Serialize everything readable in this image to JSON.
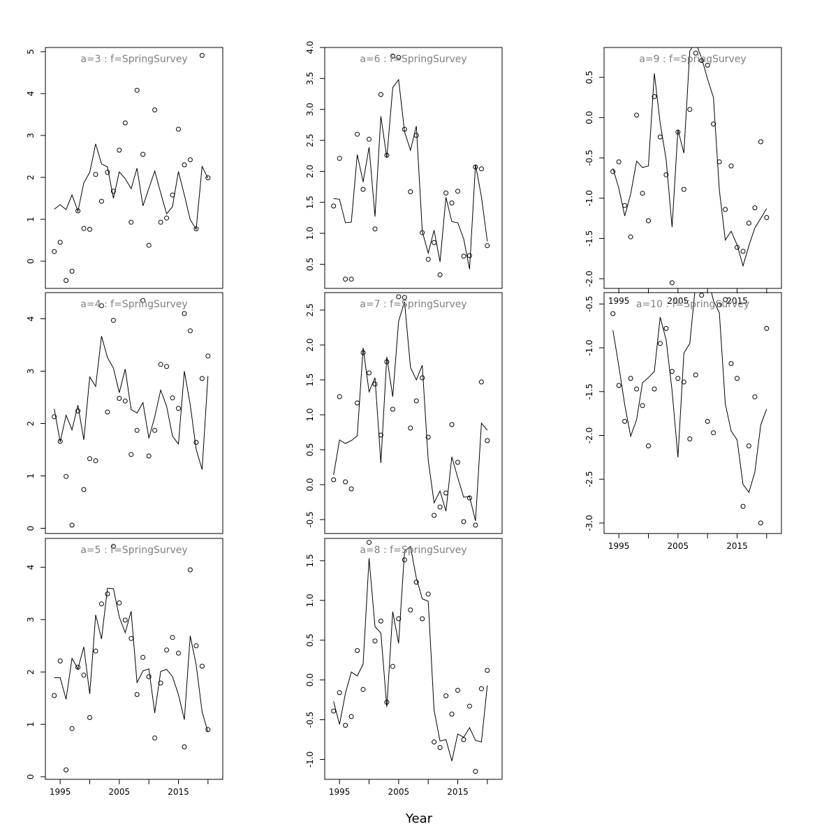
{
  "chart_data": {
    "type": "scatter",
    "xlabel": "Year",
    "x": [
      1994,
      1995,
      1996,
      1997,
      1998,
      1999,
      2000,
      2001,
      2002,
      2003,
      2004,
      2005,
      2006,
      2007,
      2008,
      2009,
      2010,
      2011,
      2012,
      2013,
      2014,
      2015,
      2016,
      2017,
      2018,
      2019,
      2020
    ],
    "xlim": [
      1992.5,
      2022.5
    ],
    "xticks": [
      1995,
      2005,
      2015
    ],
    "panels": [
      {
        "title": "a=3  :  f=SpringSurvey",
        "ylim": [
          -0.65,
          5.1
        ],
        "yticks": [
          0,
          1,
          2,
          3,
          4,
          5
        ],
        "obs": [
          0.23,
          0.45,
          -0.46,
          -0.24,
          1.2,
          0.78,
          0.76,
          2.07,
          1.43,
          2.12,
          1.67,
          2.65,
          3.3,
          0.93,
          4.08,
          2.55,
          0.38,
          3.61,
          0.93,
          1.03,
          1.58,
          3.15,
          2.3,
          2.42,
          0.77,
          4.91,
          1.99
        ],
        "fit": [
          1.24,
          1.35,
          1.23,
          1.58,
          1.19,
          1.87,
          2.12,
          2.8,
          2.32,
          2.25,
          1.5,
          2.13,
          1.97,
          1.73,
          2.22,
          1.32,
          1.74,
          2.15,
          1.63,
          1.13,
          1.3,
          2.14,
          1.58,
          0.99,
          0.76,
          2.26,
          1.98
        ]
      },
      {
        "title": "a=4  :  f=SpringSurvey",
        "ylim": [
          -0.1,
          4.5
        ],
        "yticks": [
          0,
          1,
          2,
          3,
          4
        ],
        "obs": [
          2.13,
          1.66,
          0.99,
          0.06,
          2.24,
          0.74,
          1.33,
          1.29,
          4.25,
          2.22,
          3.97,
          2.48,
          2.43,
          1.41,
          1.87,
          4.35,
          1.38,
          1.87,
          3.13,
          3.09,
          2.49,
          2.29,
          4.1,
          3.77,
          1.64,
          2.86,
          3.29
        ],
        "fit": [
          2.28,
          1.65,
          2.16,
          1.88,
          2.35,
          1.69,
          2.89,
          2.71,
          3.67,
          3.26,
          3.06,
          2.59,
          3.04,
          2.27,
          2.2,
          2.4,
          1.72,
          2.13,
          2.64,
          2.33,
          1.76,
          1.61,
          3.0,
          2.36,
          1.51,
          1.12,
          2.91
        ]
      },
      {
        "title": "a=5  :  f=SpringSurvey",
        "ylim": [
          -0.05,
          4.55
        ],
        "yticks": [
          0,
          1,
          2,
          3,
          4
        ],
        "obs": [
          1.55,
          2.21,
          0.13,
          0.92,
          2.09,
          1.94,
          1.13,
          2.4,
          3.3,
          3.49,
          4.4,
          3.32,
          2.99,
          2.64,
          1.57,
          2.28,
          1.91,
          0.74,
          1.79,
          2.42,
          2.66,
          2.36,
          0.57,
          3.95,
          2.5,
          2.11,
          0.9
        ],
        "fit": [
          1.89,
          1.89,
          1.48,
          2.26,
          2.06,
          2.48,
          1.58,
          3.09,
          2.63,
          3.6,
          3.59,
          3.05,
          2.75,
          3.16,
          1.8,
          2.02,
          2.06,
          1.22,
          2.01,
          2.05,
          1.91,
          1.57,
          1.09,
          2.69,
          2.14,
          1.24,
          0.85
        ]
      },
      {
        "title": "a=6  :  f=SpringSurvey",
        "ylim": [
          0.11,
          4.0
        ],
        "yticks": [
          0.5,
          1.0,
          1.5,
          2.0,
          2.5,
          3.0,
          3.5,
          4.0
        ],
        "obs": [
          1.44,
          2.21,
          0.26,
          0.26,
          2.6,
          1.71,
          2.52,
          1.07,
          3.24,
          2.26,
          3.86,
          3.84,
          2.68,
          1.67,
          2.58,
          1.01,
          0.58,
          0.85,
          0.33,
          1.65,
          1.49,
          1.68,
          0.63,
          0.64,
          2.07,
          2.04,
          0.8
        ],
        "fit": [
          1.56,
          1.55,
          1.17,
          1.18,
          2.27,
          1.83,
          2.39,
          1.27,
          2.89,
          2.22,
          3.35,
          3.48,
          2.64,
          2.34,
          2.73,
          1.03,
          0.68,
          1.05,
          0.54,
          1.58,
          1.19,
          1.17,
          0.91,
          0.42,
          2.11,
          1.59,
          0.87
        ]
      },
      {
        "title": "a=7  :  f=SpringSurvey",
        "ylim": [
          -0.7,
          2.75
        ],
        "yticks": [
          -0.5,
          0.0,
          0.5,
          1.0,
          1.5,
          2.0,
          2.5
        ],
        "obs": [
          0.07,
          1.26,
          0.04,
          -0.06,
          1.17,
          1.89,
          1.6,
          1.44,
          0.71,
          1.76,
          1.08,
          2.69,
          2.68,
          0.81,
          1.2,
          1.53,
          0.68,
          -0.44,
          -0.32,
          -0.12,
          0.86,
          0.32,
          -0.53,
          -0.19,
          -0.58,
          1.47,
          0.63
        ],
        "fit": [
          0.14,
          0.64,
          0.59,
          0.63,
          0.7,
          1.96,
          1.33,
          1.53,
          0.31,
          1.83,
          1.26,
          2.34,
          2.62,
          1.68,
          1.5,
          1.71,
          0.35,
          -0.26,
          -0.09,
          -0.38,
          0.4,
          0.1,
          -0.18,
          -0.17,
          -0.52,
          0.88,
          0.78
        ]
      },
      {
        "title": "a=8  :  f=SpringSurvey",
        "ylim": [
          -1.25,
          1.78
        ],
        "yticks": [
          -1.0,
          -0.5,
          0.0,
          0.5,
          1.0,
          1.5
        ],
        "obs": [
          -0.39,
          -0.16,
          -0.57,
          -0.46,
          0.37,
          -0.12,
          1.73,
          0.49,
          0.74,
          -0.28,
          0.17,
          0.77,
          1.51,
          0.88,
          1.23,
          0.77,
          1.08,
          -0.78,
          -0.85,
          -0.2,
          -0.43,
          -0.13,
          -0.75,
          -0.33,
          -1.15,
          -0.11,
          0.12
        ],
        "fit": [
          -0.27,
          -0.56,
          -0.17,
          0.1,
          0.05,
          0.2,
          1.53,
          0.67,
          0.59,
          -0.34,
          0.86,
          0.46,
          1.62,
          1.68,
          1.28,
          1.02,
          0.99,
          -0.38,
          -0.77,
          -0.75,
          -1.02,
          -0.68,
          -0.72,
          -0.6,
          -0.76,
          -0.78,
          -0.07
        ]
      },
      {
        "title": "a=9  :  f=SpringSurvey",
        "ylim": [
          -2.12,
          0.87
        ],
        "yticks": [
          -2.0,
          -1.5,
          -1.0,
          -0.5,
          0.0,
          0.5
        ],
        "obs": [
          -0.67,
          -0.55,
          -1.09,
          -1.48,
          0.03,
          -0.94,
          -1.28,
          0.26,
          -0.24,
          -0.71,
          -2.05,
          -0.18,
          -0.89,
          0.1,
          0.8,
          0.71,
          0.65,
          -0.08,
          -0.55,
          -1.14,
          -0.6,
          -1.61,
          -1.66,
          -1.31,
          -1.12,
          -0.3,
          -1.24
        ],
        "fit": [
          -0.63,
          -0.88,
          -1.22,
          -0.95,
          -0.54,
          -0.62,
          -0.6,
          0.55,
          -0.07,
          -0.52,
          -1.36,
          -0.15,
          -0.44,
          0.83,
          0.93,
          0.74,
          0.48,
          0.25,
          -0.9,
          -1.52,
          -1.41,
          -1.58,
          -1.84,
          -1.59,
          -1.37,
          -1.25,
          -1.13
        ]
      },
      {
        "title": "a=10  :  f=SpringSurvey",
        "ylim": [
          -3.12,
          -0.37
        ],
        "yticks": [
          -3.0,
          -2.5,
          -2.0,
          -1.5,
          -1.0,
          -0.5
        ],
        "obs": [
          -0.61,
          -1.43,
          -1.84,
          -1.35,
          -1.47,
          -1.66,
          -2.12,
          -1.47,
          -0.95,
          -0.78,
          -1.27,
          -1.35,
          -1.39,
          -2.04,
          -1.31,
          -0.4,
          -1.84,
          -1.97,
          -0.51,
          -0.45,
          -1.18,
          -1.35,
          -2.81,
          -2.12,
          -1.56,
          -3.0,
          -0.78
        ],
        "fit": [
          -0.8,
          -1.21,
          -1.65,
          -2.01,
          -1.82,
          -1.4,
          -1.34,
          -1.27,
          -0.65,
          -0.91,
          -1.49,
          -2.25,
          -1.06,
          -0.95,
          -0.26,
          -0.21,
          -0.18,
          -0.46,
          -0.6,
          -1.64,
          -1.95,
          -2.05,
          -2.56,
          -2.65,
          -2.42,
          -1.88,
          -1.7
        ]
      }
    ]
  }
}
